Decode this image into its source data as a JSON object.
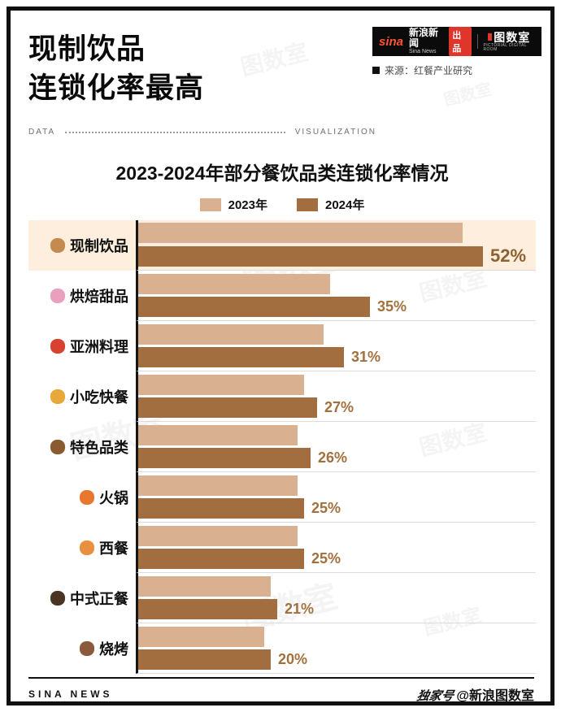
{
  "page": {
    "title_line1": "现制饮品",
    "title_line2": "连锁化率最高",
    "source": "来源：红餐产业研究"
  },
  "brand": {
    "sina_logo": "sina",
    "name_cn": "新浪新闻",
    "name_en": "Sina News",
    "chupin": "出品",
    "logo_right": "图数室",
    "logo_right_sub": "PICTORIAL DIGITAL ROOM"
  },
  "divider": {
    "left": "DATA",
    "right": "VISUALIZATION"
  },
  "chart_data": {
    "type": "bar",
    "orientation": "horizontal",
    "title": "2023-2024年部分餐饮品类连锁化率情况",
    "categories": [
      "现制饮品",
      "烘焙甜品",
      "亚洲料理",
      "小吃快餐",
      "特色品类",
      "火锅",
      "西餐",
      "中式正餐",
      "烧烤"
    ],
    "icons": [
      {
        "name": "bubble-tea-icon",
        "glyph": "🧋",
        "color": "#c48a4f"
      },
      {
        "name": "cupcake-icon",
        "glyph": "🧁",
        "color": "#e8a0bc"
      },
      {
        "name": "noodle-bowl-icon",
        "glyph": "🍜",
        "color": "#d84030"
      },
      {
        "name": "burger-icon",
        "glyph": "🍔",
        "color": "#e8a83c"
      },
      {
        "name": "specialty-dish-icon",
        "glyph": "🥘",
        "color": "#8a5a30"
      },
      {
        "name": "hotpot-icon",
        "glyph": "🍲",
        "color": "#e87830"
      },
      {
        "name": "western-food-icon",
        "glyph": "🥞",
        "color": "#e89040"
      },
      {
        "name": "chinese-meal-icon",
        "glyph": "🍛",
        "color": "#4a3424"
      },
      {
        "name": "bbq-skewer-icon",
        "glyph": "🍢",
        "color": "#8a5a3a"
      }
    ],
    "series": [
      {
        "name": "2023年",
        "color": "#d9b190",
        "values": [
          49,
          29,
          28,
          25,
          24,
          24,
          24,
          20,
          19
        ],
        "labeled": false,
        "note": "values estimated from bar lengths, not labeled in image"
      },
      {
        "name": "2024年",
        "color": "#a26e3f",
        "values": [
          52,
          35,
          31,
          27,
          26,
          25,
          25,
          21,
          20
        ],
        "labeled": true
      }
    ],
    "value_labels": [
      "52%",
      "35%",
      "31%",
      "27%",
      "26%",
      "25%",
      "25%",
      "21%",
      "20%"
    ],
    "highlight_index": 0,
    "xlim": [
      0,
      60
    ],
    "grid": false,
    "legend_position": "top"
  },
  "footer": {
    "left": "SINA NEWS",
    "handle_prefix": "独家号",
    "handle": "@新浪图数室"
  },
  "watermark": "图数室",
  "colors": {
    "bar_2023": "#d9b190",
    "bar_2024": "#a26e3f",
    "highlight_row_bg": "#fdeedd",
    "value_label": "#a2703d",
    "brand_red": "#e0352b",
    "sina_orange": "#ff5434",
    "frame_black": "#101010"
  }
}
